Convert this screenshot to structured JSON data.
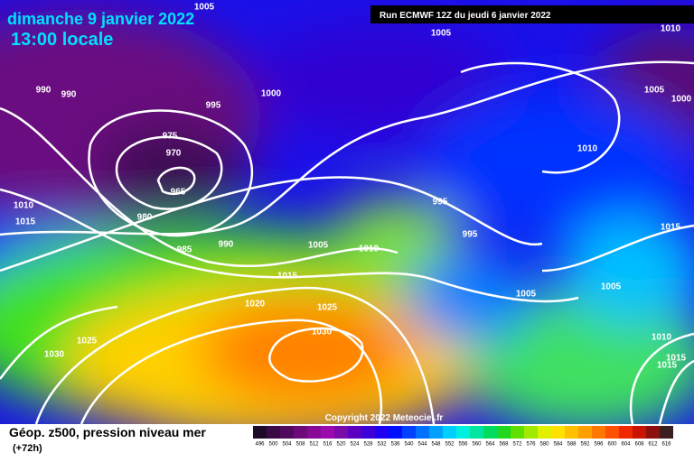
{
  "header": {
    "date": "dimanche 9 janvier 2022",
    "time": "13:00 locale",
    "run": "Run ECMWF 12Z du jeudi 6 janvier 2022"
  },
  "copyright": "Copyright 2022 Meteociel.fr",
  "legend": {
    "title": "Géop. z500, pression niveau mer",
    "lead": "(+72h)"
  },
  "colorbar": {
    "labels": [
      496,
      500,
      504,
      508,
      512,
      516,
      520,
      524,
      528,
      532,
      536,
      540,
      544,
      548,
      552,
      556,
      560,
      564,
      568,
      572,
      576,
      580,
      584,
      588,
      592,
      596,
      600,
      604,
      608,
      612,
      616
    ],
    "colors": [
      "#1e0a28",
      "#3a0a44",
      "#520a5e",
      "#6c0a7a",
      "#860a96",
      "#9a0aac",
      "#7a0aaa",
      "#5a00c0",
      "#3c00d8",
      "#2000f0",
      "#0010ff",
      "#0040ff",
      "#0070ff",
      "#00a0ff",
      "#00d0ff",
      "#00f0e0",
      "#00e6a0",
      "#00dc60",
      "#20d820",
      "#60e000",
      "#a0ea00",
      "#e0f000",
      "#ffe000",
      "#ffc000",
      "#ffa000",
      "#ff7800",
      "#ff5000",
      "#f02800",
      "#c81400",
      "#8c1010",
      "#3c1e1e"
    ]
  },
  "isobars": [
    "1005",
    "1005",
    "1010",
    "990",
    "990",
    "995",
    "1000",
    "1005",
    "1000",
    "975",
    "970",
    "965",
    "1010",
    "1010",
    "1015",
    "980",
    "995",
    "995",
    "985",
    "990",
    "1005",
    "1010",
    "1015",
    "1015",
    "1005",
    "1005",
    "1020",
    "1025",
    "1030",
    "1010",
    "1025",
    "1030",
    "1015",
    "1015"
  ]
}
